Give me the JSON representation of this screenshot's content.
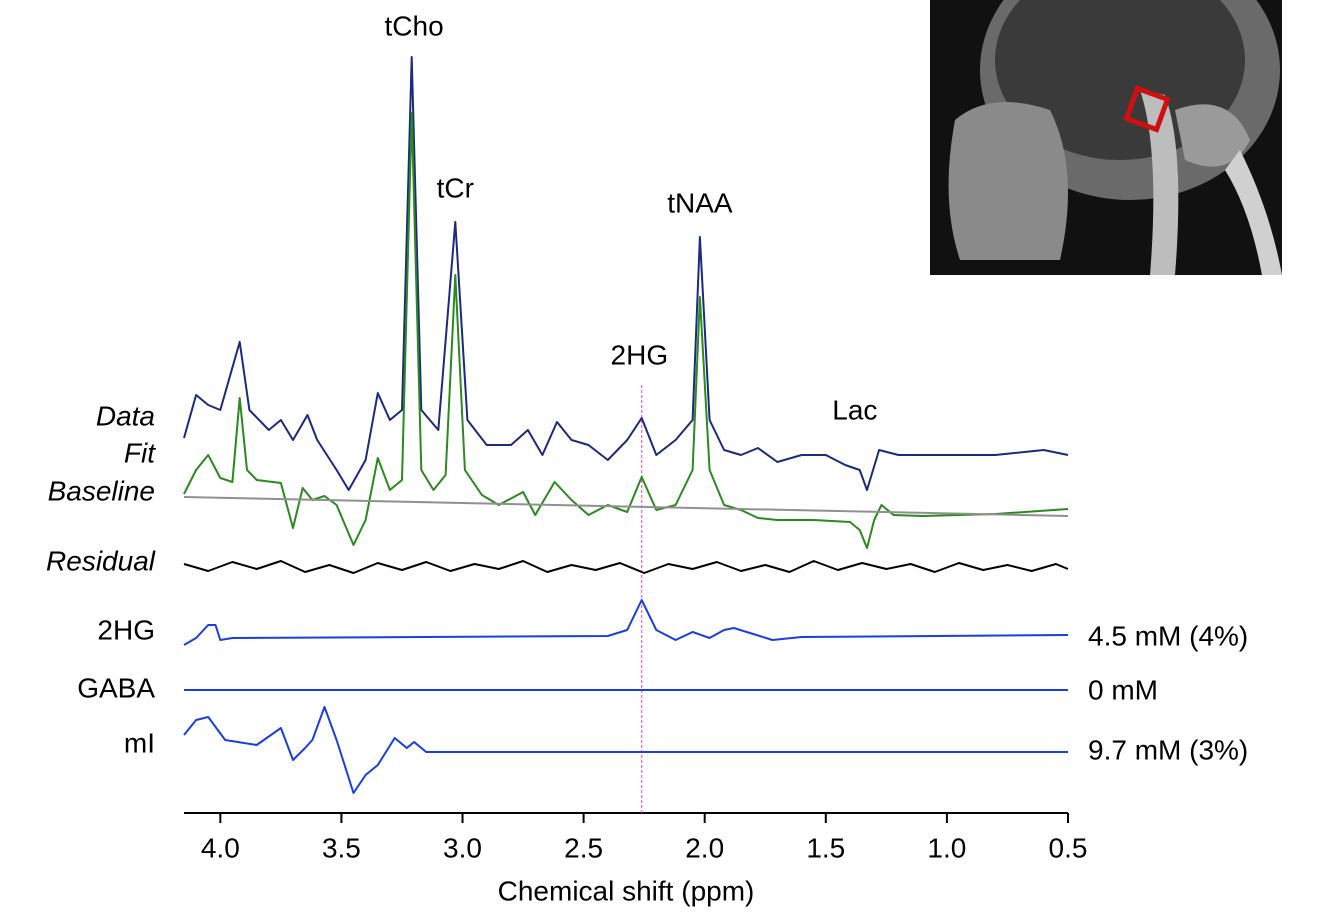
{
  "chart_data": {
    "type": "line",
    "xlabel": "Chemical shift (ppm)",
    "xlim": [
      4.15,
      0.5
    ],
    "xticks": [
      {
        "value": 4,
        "label": "4.0"
      },
      3.5,
      {
        "value": 3,
        "label": "3.0"
      },
      2.5,
      {
        "value": 2,
        "label": "2.0"
      },
      1.5,
      {
        "value": 1,
        "label": "1.0"
      },
      0.5
    ],
    "marker_x": 2.26,
    "marker_color": "#e040c0",
    "annotations": [
      {
        "text": "tCho",
        "x": 3.2
      },
      {
        "text": "tCr",
        "x": 3.03
      },
      {
        "text": "tNAA",
        "x": 2.02
      },
      {
        "text": "2HG",
        "x": 2.27
      },
      {
        "text": "Lac",
        "x": 1.38
      }
    ],
    "series": [
      {
        "name": "Data",
        "color": "#1b2a80",
        "style": "italic",
        "x": [
          4.15,
          4.1,
          4.05,
          4.0,
          3.92,
          3.88,
          3.8,
          3.75,
          3.7,
          3.64,
          3.6,
          3.52,
          3.47,
          3.4,
          3.35,
          3.3,
          3.25,
          3.21,
          3.17,
          3.1,
          3.03,
          2.98,
          2.9,
          2.8,
          2.73,
          2.67,
          2.61,
          2.55,
          2.48,
          2.4,
          2.32,
          2.26,
          2.2,
          2.12,
          2.05,
          2.02,
          1.98,
          1.92,
          1.85,
          1.78,
          1.7,
          1.6,
          1.5,
          1.42,
          1.36,
          1.33,
          1.28,
          1.2,
          1.0,
          0.8,
          0.6,
          0.5
        ],
        "values": [
          22,
          65,
          55,
          50,
          118,
          50,
          30,
          40,
          20,
          45,
          20,
          -10,
          -30,
          0,
          67,
          40,
          50,
          403,
          50,
          30,
          238,
          40,
          15,
          15,
          30,
          5,
          38,
          20,
          15,
          0,
          20,
          42,
          5,
          20,
          40,
          223,
          40,
          10,
          5,
          12,
          -2,
          5,
          5,
          -5,
          -10,
          -30,
          10,
          5,
          5,
          5,
          10,
          5
        ]
      },
      {
        "name": "Fit",
        "color": "#2a8a1e",
        "style": "italic",
        "x": [
          4.15,
          4.1,
          4.05,
          4.0,
          3.95,
          3.92,
          3.89,
          3.85,
          3.75,
          3.7,
          3.66,
          3.62,
          3.57,
          3.52,
          3.45,
          3.4,
          3.35,
          3.3,
          3.25,
          3.21,
          3.17,
          3.12,
          3.07,
          3.03,
          2.99,
          2.92,
          2.85,
          2.75,
          2.7,
          2.62,
          2.55,
          2.48,
          2.4,
          2.32,
          2.26,
          2.2,
          2.12,
          2.05,
          2.02,
          1.98,
          1.92,
          1.85,
          1.78,
          1.7,
          1.55,
          1.4,
          1.36,
          1.33,
          1.3,
          1.27,
          1.22,
          1.1,
          0.8,
          0.5
        ],
        "values": [
          16,
          40,
          55,
          32,
          28,
          112,
          40,
          30,
          27,
          -18,
          22,
          10,
          14,
          5,
          -35,
          -10,
          52,
          20,
          30,
          397,
          40,
          20,
          35,
          235,
          40,
          15,
          5,
          18,
          -5,
          28,
          10,
          -5,
          5,
          -2,
          33,
          0,
          5,
          40,
          213,
          40,
          5,
          0,
          -8,
          -10,
          -10,
          -12,
          -20,
          -38,
          -10,
          5,
          -5,
          -6,
          -4,
          1
        ]
      },
      {
        "name": "Baseline",
        "color": "#909090",
        "style": "italic",
        "x": [
          4.15,
          0.5
        ],
        "values": [
          13,
          -6
        ]
      },
      {
        "name": "Residual",
        "color": "#000000",
        "style": "italic",
        "x": [
          4.15,
          4.05,
          3.95,
          3.85,
          3.75,
          3.65,
          3.55,
          3.45,
          3.35,
          3.25,
          3.15,
          3.05,
          2.95,
          2.85,
          2.75,
          2.65,
          2.55,
          2.45,
          2.35,
          2.25,
          2.15,
          2.05,
          1.95,
          1.85,
          1.75,
          1.65,
          1.55,
          1.45,
          1.35,
          1.25,
          1.15,
          1.05,
          0.95,
          0.85,
          0.75,
          0.65,
          0.55,
          0.5
        ],
        "values": [
          3,
          -4,
          5,
          -2,
          6,
          -5,
          2,
          -6,
          4,
          -3,
          5,
          -4,
          3,
          -2,
          6,
          -5,
          2,
          -3,
          4,
          -6,
          3,
          -2,
          5,
          -4,
          2,
          -5,
          6,
          -3,
          4,
          -2,
          3,
          -5,
          4,
          -3,
          2,
          -4,
          3,
          -2
        ]
      },
      {
        "name": "2HG",
        "color": "#1a3fe0",
        "style": "normal",
        "result": "4.5 mM (4%)",
        "x": [
          4.15,
          4.1,
          4.05,
          4.02,
          4.0,
          3.95,
          2.4,
          2.32,
          2.26,
          2.2,
          2.12,
          2.05,
          1.98,
          1.92,
          1.88,
          1.8,
          1.72,
          1.6,
          0.5
        ],
        "values": [
          -9,
          -2,
          11,
          11,
          -4,
          -2,
          0,
          6,
          36,
          6,
          -4,
          4,
          -2,
          6,
          8,
          2,
          -4,
          -1,
          1
        ]
      },
      {
        "name": "GABA",
        "color": "#1a3fe0",
        "style": "normal",
        "result": "0 mM",
        "x": [
          4.15,
          0.5
        ],
        "values": [
          0,
          0
        ]
      },
      {
        "name": "mI",
        "color": "#1a3fe0",
        "style": "normal",
        "result": "9.7 mM (3%)",
        "x": [
          4.15,
          4.1,
          4.05,
          3.98,
          3.85,
          3.75,
          3.7,
          3.65,
          3.62,
          3.57,
          3.52,
          3.45,
          3.4,
          3.35,
          3.28,
          3.23,
          3.2,
          3.15,
          0.5
        ],
        "values": [
          17,
          32,
          35,
          12,
          7,
          24,
          -8,
          4,
          12,
          45,
          12,
          -41,
          -23,
          -13,
          14,
          4,
          10,
          0,
          0
        ]
      }
    ]
  }
}
